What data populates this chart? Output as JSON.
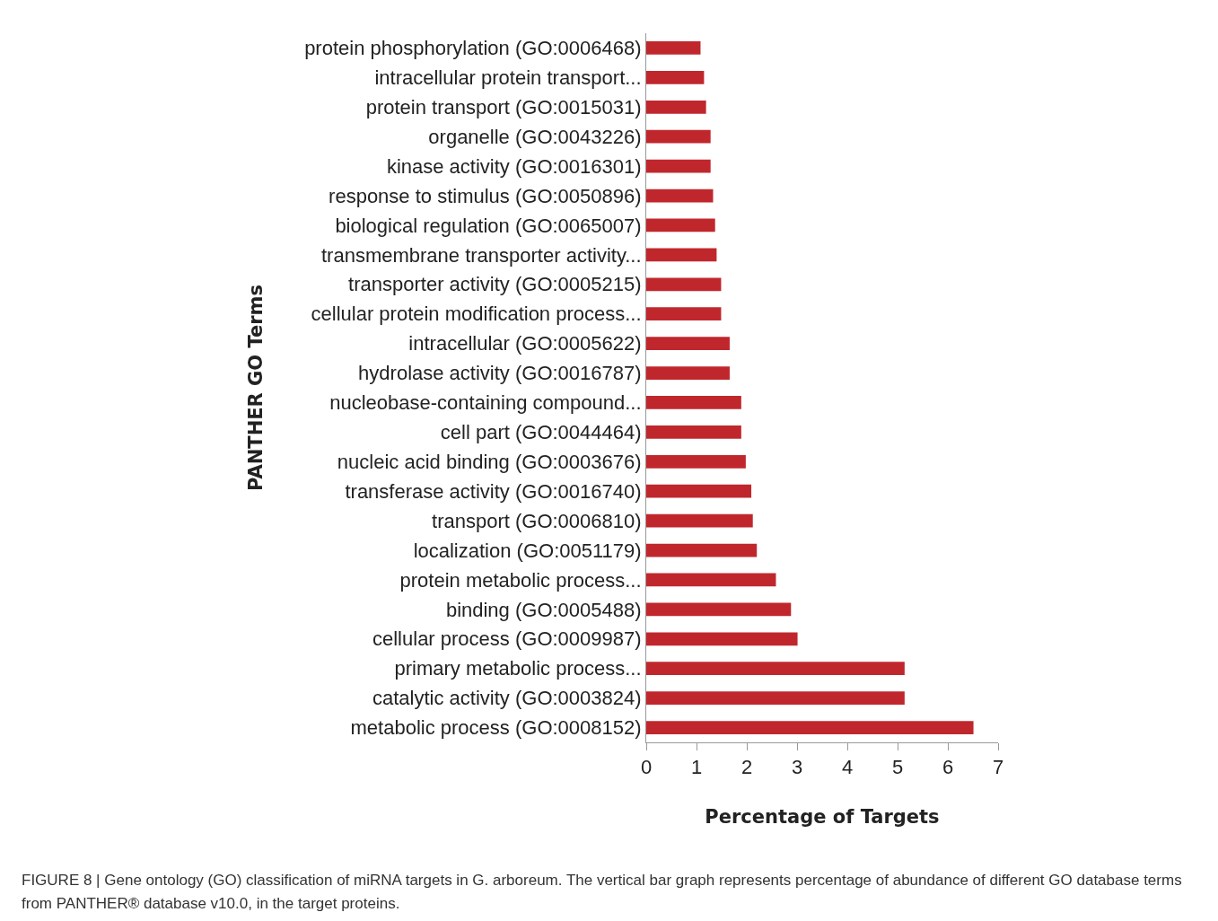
{
  "chart_data": {
    "type": "bar",
    "orientation": "horizontal",
    "ylabel": "PANTHER GO Terms",
    "xlabel": "Percentage of Targets",
    "categories": [
      "protein phosphorylation (GO:0006468)",
      "intracellular protein transport...",
      "protein transport (GO:0015031)",
      "organelle (GO:0043226)",
      "kinase activity (GO:0016301)",
      "response to stimulus (GO:0050896)",
      "biological regulation (GO:0065007)",
      "transmembrane transporter activity...",
      "transporter activity (GO:0005215)",
      "cellular protein modification process...",
      "intracellular (GO:0005622)",
      "hydrolase activity (GO:0016787)",
      "nucleobase-containing compound...",
      "cell part (GO:0044464)",
      "nucleic acid binding (GO:0003676)",
      "transferase activity (GO:0016740)",
      "transport (GO:0006810)",
      "localization (GO:0051179)",
      "protein metabolic process...",
      "binding (GO:0005488)",
      "cellular process (GO:0009987)",
      "primary metabolic process...",
      "catalytic activity (GO:0003824)",
      "metabolic process (GO:0008152)"
    ],
    "values": [
      1.08,
      1.15,
      1.19,
      1.28,
      1.28,
      1.33,
      1.37,
      1.4,
      1.49,
      1.49,
      1.66,
      1.66,
      1.89,
      1.89,
      1.98,
      2.09,
      2.12,
      2.2,
      2.58,
      2.88,
      3.01,
      5.14,
      5.14,
      6.51
    ],
    "color": "#c0272d",
    "xlim": [
      0,
      7
    ],
    "xticks": [
      0,
      1,
      2,
      3,
      4,
      5,
      6,
      7
    ],
    "grid": false,
    "annotations": [
      "FIGURE 8 | Gene ontology (GO) classification of miRNA targets in G. arboreum. The vertical bar graph represents percentage of abundance of different GO database terms from PANTHER® database v10.0, in the target proteins."
    ]
  }
}
